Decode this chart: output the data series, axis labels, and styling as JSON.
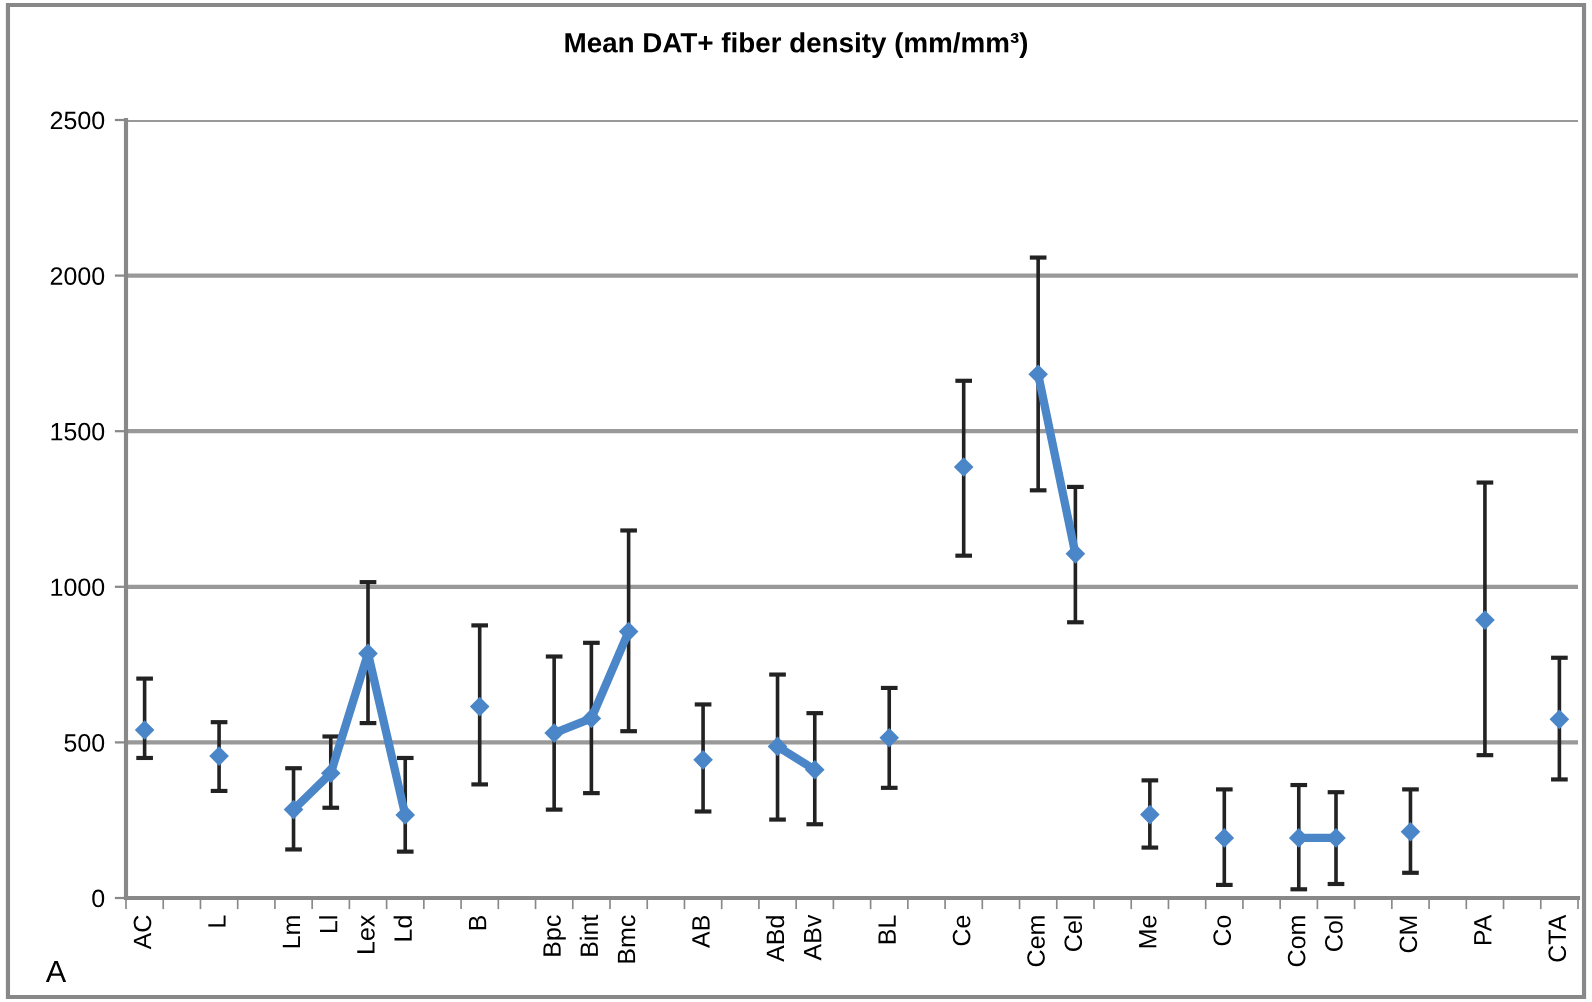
{
  "chart_data": {
    "type": "line",
    "title": "Mean DAT+ fiber density (mm/mm³)",
    "categories": [
      "AC",
      null,
      "L",
      null,
      "Lm",
      "Ll",
      "Lex",
      "Ld",
      null,
      "B",
      null,
      "Bpc",
      "Bint",
      "Bmc",
      null,
      "AB",
      null,
      "ABd",
      "ABv",
      null,
      "BL",
      null,
      "Ce",
      null,
      "Cem",
      "Cel",
      null,
      "Me",
      null,
      "Co",
      null,
      "Com",
      "Col",
      null,
      "CM",
      null,
      "PA",
      null,
      "CTA"
    ],
    "series": [
      {
        "color": "#4a86c8",
        "values": [
          540,
          null,
          456,
          null,
          284,
          401,
          786,
          267,
          null,
          615,
          null,
          530,
          577,
          856,
          null,
          444,
          null,
          487,
          412,
          null,
          515,
          null,
          1385,
          null,
          1683,
          1106,
          null,
          268,
          null,
          193,
          null,
          193,
          193,
          null,
          213,
          null,
          893,
          null,
          574
        ],
        "errors": [
          [
            450,
            705
          ],
          null,
          [
            344,
            565
          ],
          null,
          [
            156,
            417
          ],
          [
            290,
            519
          ],
          [
            562,
            1015
          ],
          [
            149,
            450
          ],
          null,
          [
            365,
            876
          ],
          null,
          [
            284,
            776
          ],
          [
            337,
            820
          ],
          [
            536,
            1181
          ],
          null,
          [
            278,
            622
          ],
          null,
          [
            252,
            718
          ],
          [
            237,
            594
          ],
          null,
          [
            354,
            675
          ],
          null,
          [
            1100,
            1662
          ],
          null,
          [
            1310,
            2058
          ],
          [
            886,
            1321
          ],
          null,
          [
            162,
            378
          ],
          null,
          [
            42,
            349
          ],
          null,
          [
            28,
            363
          ],
          [
            45,
            340
          ],
          null,
          [
            81,
            349
          ],
          null,
          [
            459,
            1335
          ],
          null,
          [
            381,
            772
          ]
        ]
      }
    ],
    "ylim": [
      0,
      2500
    ],
    "yticks": [
      0,
      500,
      1000,
      1500,
      2000,
      2500
    ],
    "grid": "y",
    "marker": "diamond",
    "line_style": "solid",
    "annotations": [
      "A"
    ]
  }
}
